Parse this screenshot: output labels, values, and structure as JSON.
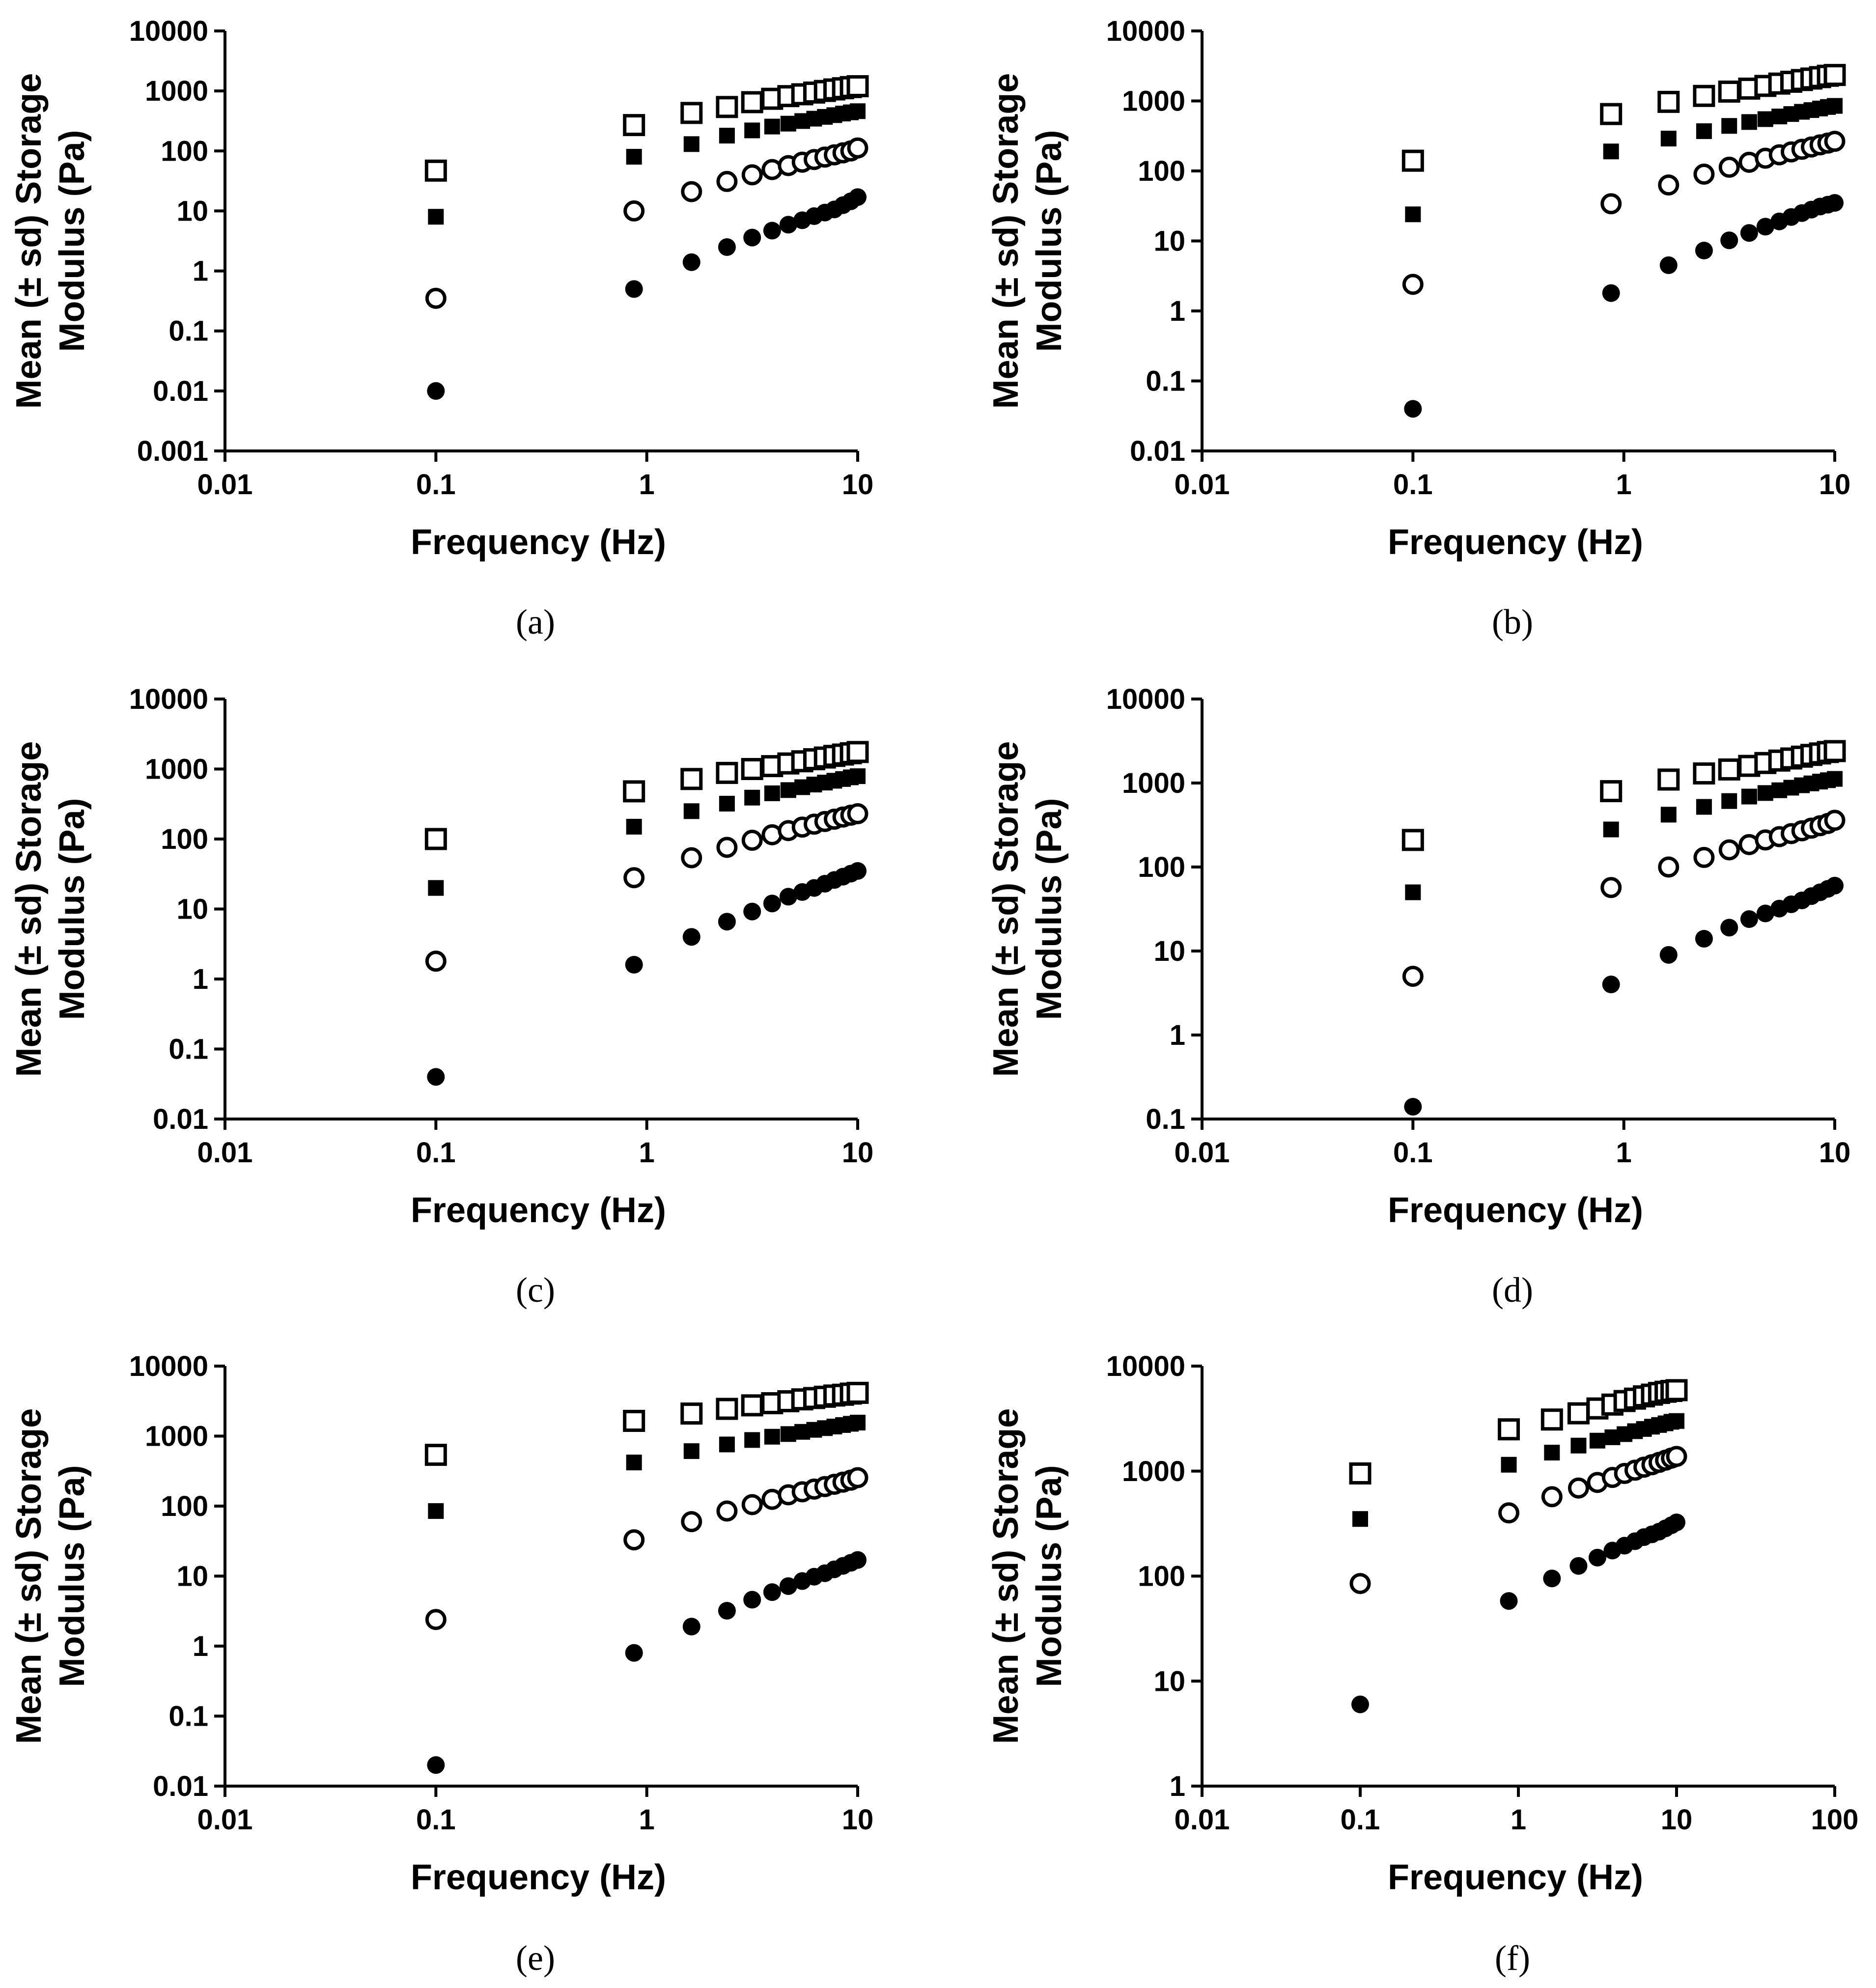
{
  "colors": {
    "ink": "#000000",
    "background": "#ffffff"
  },
  "chart_data": [
    {
      "caption": "(a)",
      "type": "scatter",
      "xscale": "log",
      "yscale": "log",
      "xlabel": "Frequency (Hz)",
      "ylabel": "Mean (± sd) Storage Modulus (Pa)",
      "ylabel_lines": [
        "Mean (± sd) Storage",
        "Modulus (Pa)"
      ],
      "xlim": [
        0.01,
        10
      ],
      "ylim": [
        0.001,
        10000
      ],
      "xticks": [
        0.01,
        0.1,
        1,
        10
      ],
      "xtick_labels": [
        "0.01",
        "0.1",
        "1",
        "10"
      ],
      "yticks": [
        0.001,
        0.01,
        0.1,
        1,
        10,
        100,
        1000,
        10000
      ],
      "ytick_labels": [
        "0.001",
        "0.01",
        "0.1",
        "1",
        "10",
        "100",
        "1000",
        "10000"
      ],
      "x": [
        0.1,
        0.87,
        1.63,
        2.4,
        3.16,
        3.93,
        4.69,
        5.46,
        6.22,
        6.99,
        7.75,
        8.52,
        9.28,
        10.0
      ],
      "series": [
        {
          "name": "open-square",
          "marker": "square-open",
          "values": [
            47,
            270,
            430,
            540,
            650,
            740,
            820,
            880,
            940,
            1000,
            1060,
            1110,
            1160,
            1200
          ]
        },
        {
          "name": "filled-square",
          "marker": "square-filled",
          "values": [
            8,
            80,
            130,
            180,
            220,
            255,
            285,
            315,
            345,
            370,
            395,
            420,
            440,
            460
          ]
        },
        {
          "name": "open-circle",
          "marker": "circle-open",
          "values": [
            0.35,
            10,
            21,
            31,
            40,
            49,
            57,
            65,
            72,
            79,
            86,
            93,
            100,
            112
          ]
        },
        {
          "name": "filled-circle",
          "marker": "circle-filled",
          "values": [
            0.01,
            0.5,
            1.4,
            2.5,
            3.6,
            4.7,
            5.9,
            7.0,
            8.2,
            9.4,
            10.6,
            12.5,
            14.5,
            17
          ]
        }
      ]
    },
    {
      "caption": "(b)",
      "type": "scatter",
      "xscale": "log",
      "yscale": "log",
      "xlabel": "Frequency (Hz)",
      "ylabel": "Mean (± sd) Storage Modulus (Pa)",
      "ylabel_lines": [
        "Mean (± sd) Storage",
        "Modulus (Pa)"
      ],
      "xlim": [
        0.01,
        10
      ],
      "ylim": [
        0.01,
        10000
      ],
      "xticks": [
        0.01,
        0.1,
        1,
        10
      ],
      "xtick_labels": [
        "0.01",
        "0.1",
        "1",
        "10"
      ],
      "yticks": [
        0.01,
        0.1,
        1,
        10,
        100,
        1000,
        10000
      ],
      "ytick_labels": [
        "0.01",
        "0.1",
        "1",
        "10",
        "100",
        "1000",
        "10000"
      ],
      "x": [
        0.1,
        0.87,
        1.63,
        2.4,
        3.16,
        3.93,
        4.69,
        5.46,
        6.22,
        6.99,
        7.75,
        8.52,
        9.28,
        10.0
      ],
      "series": [
        {
          "name": "open-square",
          "marker": "square-open",
          "values": [
            140,
            650,
            970,
            1180,
            1360,
            1500,
            1640,
            1770,
            1880,
            1990,
            2090,
            2190,
            2290,
            2350
          ]
        },
        {
          "name": "filled-square",
          "marker": "square-filled",
          "values": [
            24,
            190,
            290,
            370,
            440,
            500,
            550,
            600,
            650,
            700,
            740,
            780,
            820,
            850
          ]
        },
        {
          "name": "open-circle",
          "marker": "circle-open",
          "values": [
            2.4,
            34,
            63,
            90,
            113,
            133,
            152,
            170,
            187,
            204,
            220,
            236,
            250,
            265
          ]
        },
        {
          "name": "filled-circle",
          "marker": "circle-filled",
          "values": [
            0.04,
            1.8,
            4.5,
            7.3,
            10.2,
            13,
            16,
            19,
            22,
            25,
            28,
            31,
            33,
            35
          ]
        }
      ]
    },
    {
      "caption": "(c)",
      "type": "scatter",
      "xscale": "log",
      "yscale": "log",
      "xlabel": "Frequency (Hz)",
      "ylabel": "Mean (± sd) Storage Modulus (Pa)",
      "ylabel_lines": [
        "Mean (± sd) Storage",
        "Modulus (Pa)"
      ],
      "xlim": [
        0.01,
        10
      ],
      "ylim": [
        0.01,
        10000
      ],
      "xticks": [
        0.01,
        0.1,
        1,
        10
      ],
      "xtick_labels": [
        "0.01",
        "0.1",
        "1",
        "10"
      ],
      "yticks": [
        0.01,
        0.1,
        1,
        10,
        100,
        1000,
        10000
      ],
      "ytick_labels": [
        "0.01",
        "0.1",
        "1",
        "10",
        "100",
        "1000",
        "10000"
      ],
      "x": [
        0.1,
        0.87,
        1.63,
        2.4,
        3.16,
        3.93,
        4.69,
        5.46,
        6.22,
        6.99,
        7.75,
        8.52,
        9.28,
        10.0
      ],
      "series": [
        {
          "name": "open-square",
          "marker": "square-open",
          "values": [
            100,
            480,
            720,
            880,
            1000,
            1100,
            1200,
            1290,
            1380,
            1460,
            1540,
            1610,
            1680,
            1750
          ]
        },
        {
          "name": "filled-square",
          "marker": "square-filled",
          "values": [
            20,
            150,
            250,
            320,
            390,
            450,
            500,
            550,
            600,
            640,
            680,
            720,
            760,
            790
          ]
        },
        {
          "name": "open-circle",
          "marker": "circle-open",
          "values": [
            1.8,
            28,
            54,
            76,
            96,
            115,
            132,
            148,
            163,
            178,
            192,
            206,
            219,
            230
          ]
        },
        {
          "name": "filled-circle",
          "marker": "circle-filled",
          "values": [
            0.04,
            1.6,
            4,
            6.6,
            9.2,
            12,
            15,
            17.5,
            20,
            23,
            26,
            29,
            32,
            35
          ]
        }
      ]
    },
    {
      "caption": "(d)",
      "type": "scatter",
      "xscale": "log",
      "yscale": "log",
      "xlabel": "Frequency (Hz)",
      "ylabel": "Mean (± sd) Storage Modulus (Pa)",
      "ylabel_lines": [
        "Mean (± sd) Storage",
        "Modulus (Pa)"
      ],
      "xlim": [
        0.01,
        10
      ],
      "ylim": [
        0.1,
        10000
      ],
      "xticks": [
        0.01,
        0.1,
        1,
        10
      ],
      "xtick_labels": [
        "0.01",
        "0.1",
        "1",
        "10"
      ],
      "yticks": [
        0.1,
        1,
        10,
        100,
        1000,
        10000
      ],
      "ytick_labels": [
        "0.1",
        "1",
        "10",
        "100",
        "1000",
        "10000"
      ],
      "x": [
        0.1,
        0.87,
        1.63,
        2.4,
        3.16,
        3.93,
        4.69,
        5.46,
        6.22,
        6.99,
        7.75,
        8.52,
        9.28,
        10.0
      ],
      "series": [
        {
          "name": "open-square",
          "marker": "square-open",
          "values": [
            210,
            800,
            1100,
            1300,
            1450,
            1600,
            1730,
            1850,
            1960,
            2060,
            2160,
            2250,
            2340,
            2400
          ]
        },
        {
          "name": "filled-square",
          "marker": "square-filled",
          "values": [
            50,
            280,
            420,
            520,
            610,
            690,
            760,
            820,
            880,
            940,
            990,
            1040,
            1080,
            1120
          ]
        },
        {
          "name": "open-circle",
          "marker": "circle-open",
          "values": [
            5,
            57,
            100,
            130,
            160,
            185,
            210,
            230,
            250,
            270,
            290,
            310,
            330,
            360
          ]
        },
        {
          "name": "filled-circle",
          "marker": "circle-filled",
          "values": [
            0.14,
            4,
            9,
            14,
            19,
            24,
            28,
            32,
            36,
            40,
            45,
            50,
            55,
            60
          ]
        }
      ]
    },
    {
      "caption": "(e)",
      "type": "scatter",
      "xscale": "log",
      "yscale": "log",
      "xlabel": "Frequency (Hz)",
      "ylabel": "Mean (± sd) Storage Modulus (Pa)",
      "ylabel_lines": [
        "Mean (± sd) Storage",
        "Modulus (Pa)"
      ],
      "xlim": [
        0.01,
        10
      ],
      "ylim": [
        0.01,
        10000
      ],
      "xticks": [
        0.01,
        0.1,
        1,
        10
      ],
      "xtick_labels": [
        "0.01",
        "0.1",
        "1",
        "10"
      ],
      "yticks": [
        0.01,
        0.1,
        1,
        10,
        100,
        1000,
        10000
      ],
      "ytick_labels": [
        "0.01",
        "0.1",
        "1",
        "10",
        "100",
        "1000",
        "10000"
      ],
      "x": [
        0.1,
        0.87,
        1.63,
        2.4,
        3.16,
        3.93,
        4.69,
        5.46,
        6.22,
        6.99,
        7.75,
        8.52,
        9.28,
        10.0
      ],
      "series": [
        {
          "name": "open-square",
          "marker": "square-open",
          "values": [
            540,
            1650,
            2100,
            2450,
            2750,
            2950,
            3150,
            3350,
            3500,
            3650,
            3800,
            3900,
            4050,
            4150
          ]
        },
        {
          "name": "filled-square",
          "marker": "square-filled",
          "values": [
            85,
            420,
            610,
            760,
            880,
            980,
            1070,
            1150,
            1230,
            1300,
            1370,
            1440,
            1500,
            1560
          ]
        },
        {
          "name": "open-circle",
          "marker": "circle-open",
          "values": [
            2.4,
            33,
            60,
            85,
            105,
            125,
            145,
            160,
            175,
            190,
            205,
            220,
            235,
            255
          ]
        },
        {
          "name": "filled-circle",
          "marker": "circle-filled",
          "values": [
            0.02,
            0.8,
            1.9,
            3.2,
            4.6,
            5.9,
            7.2,
            8.5,
            9.8,
            11,
            12.5,
            14,
            15.5,
            17
          ]
        }
      ]
    },
    {
      "caption": "(f)",
      "type": "scatter",
      "xscale": "log",
      "yscale": "log",
      "xlabel": "Frequency (Hz)",
      "ylabel": "Mean (± sd) Storage Modulus (Pa)",
      "ylabel_lines": [
        "Mean (± sd) Storage",
        "Modulus (Pa)"
      ],
      "xlim": [
        0.01,
        100
      ],
      "ylim": [
        1,
        10000
      ],
      "xticks": [
        0.01,
        0.1,
        1,
        10,
        100
      ],
      "xtick_labels": [
        "0.01",
        "0.1",
        "1",
        "10",
        "100"
      ],
      "yticks": [
        1,
        10,
        100,
        1000,
        10000
      ],
      "ytick_labels": [
        "1",
        "10",
        "100",
        "1000",
        "10000"
      ],
      "x": [
        0.1,
        0.87,
        1.63,
        2.4,
        3.16,
        3.93,
        4.69,
        5.46,
        6.22,
        6.99,
        7.75,
        8.52,
        9.28,
        10.0
      ],
      "series": [
        {
          "name": "open-square",
          "marker": "square-open",
          "values": [
            950,
            2500,
            3100,
            3550,
            3950,
            4300,
            4650,
            4900,
            5150,
            5350,
            5550,
            5700,
            5800,
            5900
          ]
        },
        {
          "name": "filled-square",
          "marker": "square-filled",
          "values": [
            350,
            1150,
            1500,
            1750,
            1950,
            2100,
            2250,
            2400,
            2520,
            2650,
            2750,
            2850,
            2950,
            3000
          ]
        },
        {
          "name": "open-circle",
          "marker": "circle-open",
          "values": [
            85,
            400,
            570,
            690,
            780,
            870,
            950,
            1020,
            1090,
            1150,
            1210,
            1270,
            1330,
            1380
          ]
        },
        {
          "name": "filled-circle",
          "marker": "circle-filled",
          "values": [
            6,
            58,
            95,
            125,
            150,
            175,
            195,
            215,
            235,
            250,
            265,
            285,
            305,
            325
          ]
        }
      ]
    }
  ]
}
